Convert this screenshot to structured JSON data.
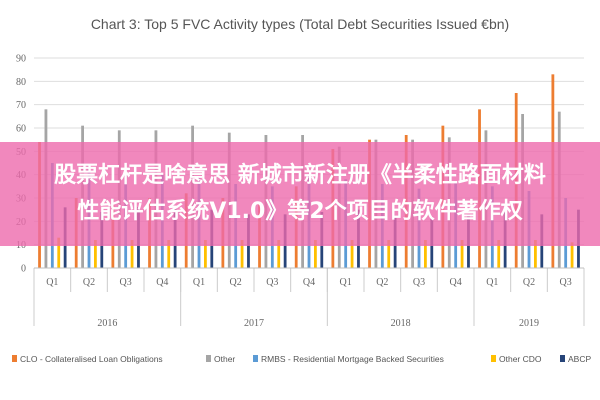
{
  "chart_data": {
    "type": "bar",
    "title": "Chart 3: Top 5 FVC Activity types (Total Debt Securities Issued €bn)",
    "xlabel": "",
    "ylabel": "",
    "ylim": [
      0,
      90
    ],
    "yticks": [
      0,
      10,
      20,
      30,
      40,
      50,
      60,
      70,
      80,
      90
    ],
    "grid": true,
    "legend_position": "bottom",
    "categories": [
      "Q1",
      "Q2",
      "Q3",
      "Q4",
      "Q1",
      "Q2",
      "Q3",
      "Q4",
      "Q1",
      "Q2",
      "Q3",
      "Q4",
      "Q1",
      "Q2",
      "Q3"
    ],
    "groups": [
      {
        "label": "2016",
        "count": 4
      },
      {
        "label": "2017",
        "count": 4
      },
      {
        "label": "2018",
        "count": 4
      },
      {
        "label": "2019",
        "count": 3
      }
    ],
    "series": [
      {
        "name": "CLO - Collateralised Loan Obligations",
        "color": "#ed7d31",
        "values": [
          54,
          30,
          27,
          30,
          32,
          30,
          28,
          35,
          51,
          55,
          57,
          61,
          68,
          75,
          83
        ]
      },
      {
        "name": "Other",
        "color": "#a5a5a5",
        "values": [
          68,
          61,
          59,
          59,
          61,
          58,
          57,
          57,
          52,
          55,
          55,
          56,
          59,
          66,
          67
        ]
      },
      {
        "name": "RMBS - Residential Mortgage Backed Securities",
        "color": "#5b9bd5",
        "values": [
          45,
          44,
          41,
          40,
          39,
          36,
          35,
          40,
          38,
          36,
          34,
          37,
          35,
          33,
          30
        ]
      },
      {
        "name": "Other CDO",
        "color": "#ffc000",
        "values": [
          13,
          12,
          12,
          12,
          12,
          12,
          12,
          12,
          12,
          12,
          12,
          12,
          12,
          12,
          11
        ]
      },
      {
        "name": "ABCP",
        "color": "#264478",
        "values": [
          26,
          24,
          26,
          26,
          25,
          23,
          23,
          24,
          25,
          22,
          22,
          23,
          24,
          23,
          25
        ]
      }
    ]
  },
  "overlay": {
    "line1": "股票杠杆是啥意思 新城市新注册《半柔性路面材料",
    "line2": "性能评估系统V1.0》等2个项目的软件著作权"
  }
}
